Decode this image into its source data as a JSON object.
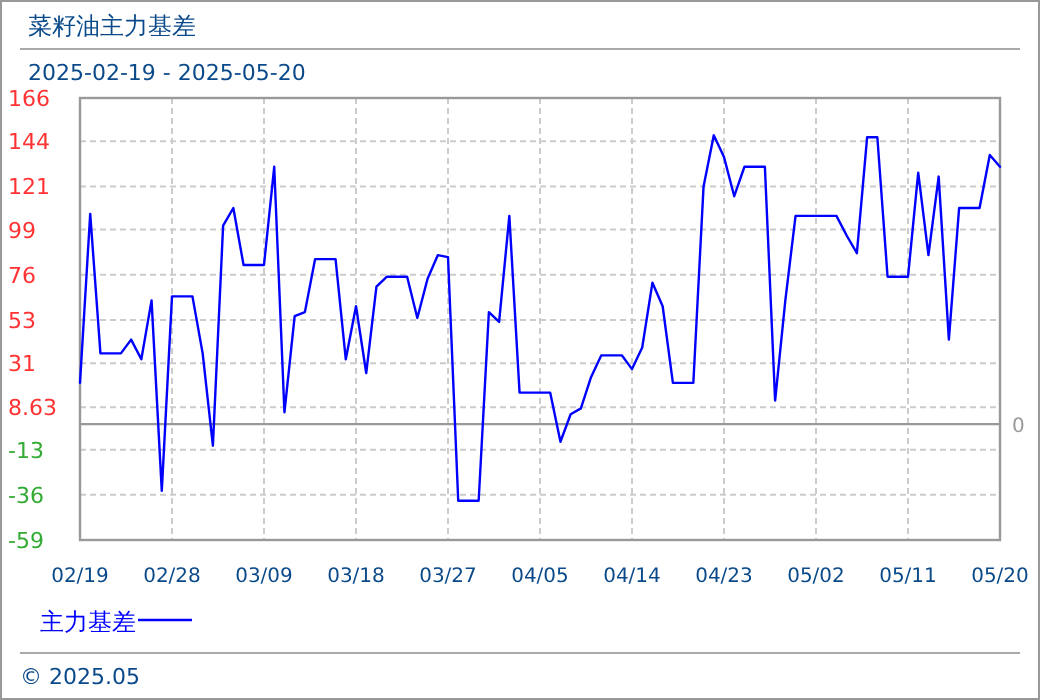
{
  "chart_data": {
    "type": "line",
    "title": "菜籽油主力基差",
    "subtitle": "2025-02-19 - 2025-05-20",
    "x": [
      "2025-02-19",
      "2025-02-20",
      "2025-02-21",
      "2025-02-22",
      "2025-02-23",
      "2025-02-24",
      "2025-02-25",
      "2025-02-26",
      "2025-02-27",
      "2025-02-28",
      "2025-03-01",
      "2025-03-02",
      "2025-03-03",
      "2025-03-04",
      "2025-03-05",
      "2025-03-06",
      "2025-03-07",
      "2025-03-08",
      "2025-03-09",
      "2025-03-10",
      "2025-03-11",
      "2025-03-12",
      "2025-03-13",
      "2025-03-14",
      "2025-03-15",
      "2025-03-16",
      "2025-03-17",
      "2025-03-18",
      "2025-03-19",
      "2025-03-20",
      "2025-03-21",
      "2025-03-22",
      "2025-03-23",
      "2025-03-24",
      "2025-03-25",
      "2025-03-26",
      "2025-03-27",
      "2025-03-28",
      "2025-03-29",
      "2025-03-30",
      "2025-03-31",
      "2025-04-01",
      "2025-04-02",
      "2025-04-03",
      "2025-04-04",
      "2025-04-05",
      "2025-04-06",
      "2025-04-07",
      "2025-04-08",
      "2025-04-09",
      "2025-04-10",
      "2025-04-11",
      "2025-04-12",
      "2025-04-13",
      "2025-04-14",
      "2025-04-15",
      "2025-04-16",
      "2025-04-17",
      "2025-04-18",
      "2025-04-19",
      "2025-04-20",
      "2025-04-21",
      "2025-04-22",
      "2025-04-23",
      "2025-04-24",
      "2025-04-25",
      "2025-04-26",
      "2025-04-27",
      "2025-04-28",
      "2025-04-29",
      "2025-04-30",
      "2025-05-01",
      "2025-05-02",
      "2025-05-03",
      "2025-05-04",
      "2025-05-05",
      "2025-05-06",
      "2025-05-07",
      "2025-05-08",
      "2025-05-09",
      "2025-05-10",
      "2025-05-11",
      "2025-05-12",
      "2025-05-13",
      "2025-05-14",
      "2025-05-15",
      "2025-05-16",
      "2025-05-17",
      "2025-05-18",
      "2025-05-19",
      "2025-05-20"
    ],
    "series": [
      {
        "name": "主力基差",
        "color": "#0000ff",
        "values": [
          21,
          107,
          36,
          36,
          36,
          43,
          33,
          63,
          -34,
          65,
          65,
          65,
          36,
          -11,
          101,
          110,
          81,
          81,
          81,
          131,
          6,
          55,
          57,
          84,
          84,
          84,
          33,
          60,
          26,
          70,
          75,
          75,
          75,
          54,
          74,
          86,
          85,
          -39,
          -39,
          -39,
          57,
          52,
          106,
          16,
          16,
          16,
          16,
          -9,
          5,
          8,
          24,
          35,
          35,
          35,
          28,
          39,
          72,
          60,
          21,
          21,
          21,
          121,
          147,
          136,
          116,
          131,
          131,
          131,
          12,
          63,
          106,
          106,
          106,
          106,
          106,
          96,
          87,
          146,
          146,
          75,
          75,
          75,
          128,
          86,
          126,
          43,
          110,
          110,
          110,
          137,
          131
        ]
      }
    ],
    "ylim": [
      -59,
      166
    ],
    "yticks": [
      -59,
      -36,
      -13,
      8.63,
      31,
      53,
      76,
      99,
      121,
      144,
      166
    ],
    "xlim": [
      "2025-02-19",
      "2025-05-20"
    ],
    "xticks": [
      {
        "value": "2025-02-19",
        "label": "02/19"
      },
      {
        "value": "2025-02-28",
        "label": "02/28"
      },
      {
        "value": "2025-03-09",
        "label": "03/09"
      },
      {
        "value": "2025-03-18",
        "label": "03/18"
      },
      {
        "value": "2025-03-27",
        "label": "03/27"
      },
      {
        "value": "2025-04-05",
        "label": "04/05"
      },
      {
        "value": "2025-04-14",
        "label": "04/14"
      },
      {
        "value": "2025-04-23",
        "label": "04/23"
      },
      {
        "value": "2025-05-02",
        "label": "05/02"
      },
      {
        "value": "2025-05-11",
        "label": "05/11"
      },
      {
        "value": "2025-05-20",
        "label": "05/20"
      }
    ],
    "ref_lines": [
      {
        "axis": "y",
        "value": 0,
        "label": "0",
        "color": "#999999"
      }
    ],
    "grid": true,
    "legend": "bottom",
    "marker": "none",
    "line_style": "solid",
    "annotations": [
      "© 2025.05"
    ]
  }
}
